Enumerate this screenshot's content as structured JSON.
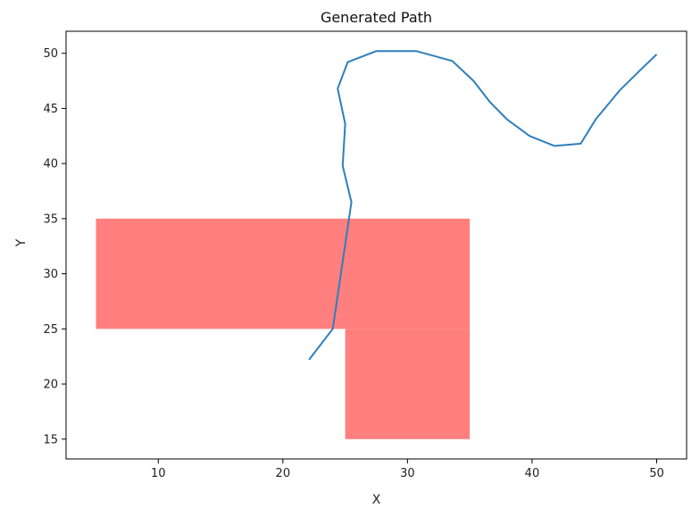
{
  "chart_data": {
    "type": "line",
    "title": "Generated Path",
    "xlabel": "X",
    "ylabel": "Y",
    "xlim": [
      2.6,
      52.4
    ],
    "ylim": [
      13.2,
      52.0
    ],
    "xticks": [
      10,
      20,
      30,
      40,
      50
    ],
    "yticks": [
      15,
      20,
      25,
      30,
      35,
      40,
      45,
      50
    ],
    "grid": false,
    "series": [
      {
        "color": "#2e7fbc",
        "x": [
          22.1,
          24.0,
          25.5,
          24.8,
          25.0,
          24.4,
          25.2,
          27.5,
          30.7,
          33.6,
          35.3,
          36.6,
          38.0,
          39.8,
          41.8,
          43.9,
          45.1,
          47.0,
          48.7,
          50.0
        ],
        "y": [
          22.2,
          25.0,
          36.5,
          39.8,
          43.6,
          46.8,
          49.2,
          50.2,
          50.2,
          49.3,
          47.5,
          45.6,
          44.0,
          42.5,
          41.6,
          41.8,
          44.0,
          46.6,
          48.5,
          49.9
        ]
      }
    ],
    "obstacles": [
      {
        "color": "#ff7f7f",
        "x0": 5,
        "x1": 35,
        "y0": 25,
        "y1": 35
      },
      {
        "color": "#ff7f7f",
        "x0": 25,
        "x1": 35,
        "y0": 15,
        "y1": 25
      }
    ]
  }
}
